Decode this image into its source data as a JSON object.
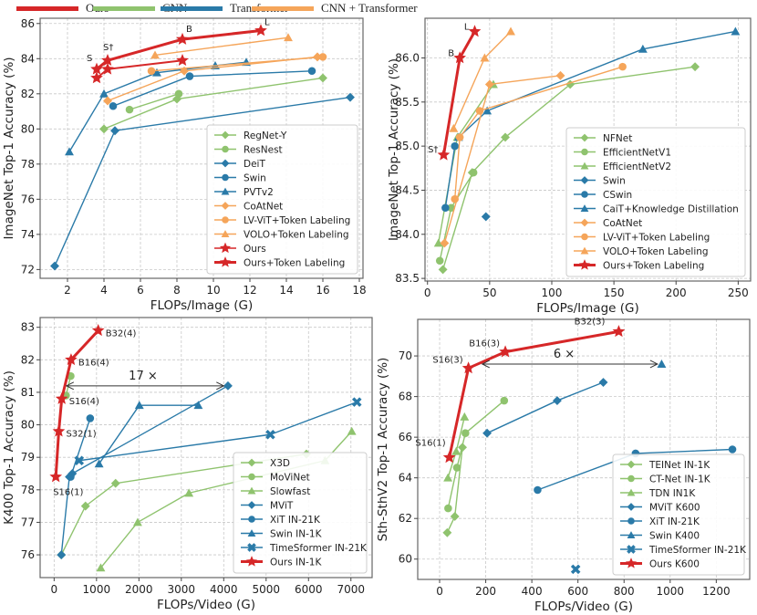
{
  "top_legend": {
    "items": [
      {
        "label": "Ours",
        "color": "#d62728"
      },
      {
        "label": "CNN",
        "color": "#8fc36e"
      },
      {
        "label": "Transformer",
        "color": "#2a7aa8"
      },
      {
        "label": "CNN + Transformer",
        "color": "#f5a55a"
      }
    ]
  },
  "colors": {
    "ours": "#d62728",
    "cnn": "#8fc36e",
    "transformer": "#2a7aa8",
    "hybrid": "#f5a55a"
  },
  "chart_data": [
    {
      "id": "imagenet-small",
      "type": "line",
      "xlabel": "FLOPs/Image (G)",
      "ylabel": "ImageNet Top-1 Accuracy (%)",
      "xlim": [
        0.5,
        18.2
      ],
      "ylim": [
        71.5,
        86.3
      ],
      "xticks": [
        2,
        4,
        6,
        8,
        10,
        12,
        14,
        16,
        18
      ],
      "yticks": [
        72,
        74,
        76,
        78,
        80,
        82,
        84,
        86
      ],
      "grid": true,
      "legend_position": "lower-right",
      "series": [
        {
          "name": "RegNet-Y",
          "group": "cnn",
          "marker": "diamond",
          "points": [
            [
              4.0,
              80.0
            ],
            [
              8.0,
              81.7
            ],
            [
              16.0,
              82.9
            ]
          ]
        },
        {
          "name": "ResNest",
          "group": "cnn",
          "marker": "circle",
          "points": [
            [
              5.4,
              81.1
            ],
            [
              8.1,
              82.0
            ]
          ]
        },
        {
          "name": "DeiT",
          "group": "transformer",
          "marker": "diamond",
          "points": [
            [
              1.3,
              72.2
            ],
            [
              4.6,
              79.9
            ],
            [
              17.5,
              81.8
            ]
          ]
        },
        {
          "name": "Swin",
          "group": "transformer",
          "marker": "circle",
          "points": [
            [
              4.5,
              81.3
            ],
            [
              8.7,
              83.0
            ],
            [
              15.4,
              83.3
            ]
          ]
        },
        {
          "name": "PVTv2",
          "group": "transformer",
          "marker": "triangle",
          "points": [
            [
              2.1,
              78.7
            ],
            [
              4.0,
              82.0
            ],
            [
              6.9,
              83.2
            ],
            [
              10.1,
              83.6
            ],
            [
              11.8,
              83.8
            ]
          ]
        },
        {
          "name": "CoAtNet",
          "group": "hybrid",
          "marker": "diamond",
          "points": [
            [
              4.2,
              81.6
            ],
            [
              8.4,
              83.3
            ],
            [
              15.7,
              84.1
            ]
          ]
        },
        {
          "name": "LV-ViT+Token Labeling",
          "group": "hybrid",
          "marker": "circle",
          "points": [
            [
              6.6,
              83.3
            ],
            [
              16.0,
              84.1
            ]
          ]
        },
        {
          "name": "VOLO+Token Labeling",
          "group": "hybrid",
          "marker": "triangle",
          "points": [
            [
              6.8,
              84.2
            ],
            [
              14.1,
              85.2
            ]
          ]
        },
        {
          "name": "Ours",
          "group": "ours",
          "marker": "star",
          "bold": false,
          "points": [
            [
              3.6,
              82.9
            ],
            [
              4.2,
              83.4
            ],
            [
              8.3,
              83.9
            ]
          ]
        },
        {
          "name": "Ours+Token Labeling",
          "group": "ours",
          "marker": "star",
          "bold": true,
          "points": [
            [
              3.6,
              83.4
            ],
            [
              4.2,
              83.9
            ],
            [
              8.3,
              85.1
            ],
            [
              12.6,
              85.6
            ]
          ]
        }
      ],
      "annotations": [
        {
          "text": "S",
          "x": 3.6,
          "y": 83.4
        },
        {
          "text": "S†",
          "x": 4.2,
          "y": 83.9
        },
        {
          "text": "B",
          "x": 8.3,
          "y": 85.1
        },
        {
          "text": "L",
          "x": 12.6,
          "y": 85.6
        }
      ]
    },
    {
      "id": "imagenet-large",
      "type": "line",
      "xlabel": "FLOPs/Image (G)",
      "ylabel": "ImageNet Top-1 Accuracy (%)",
      "xlim": [
        -2,
        260
      ],
      "ylim": [
        83.47,
        86.45
      ],
      "xticks": [
        0,
        50,
        100,
        150,
        200,
        250
      ],
      "yticks": [
        83.5,
        84.0,
        84.5,
        85.0,
        85.5,
        86.0
      ],
      "grid": true,
      "legend_position": "lower-right",
      "series": [
        {
          "name": "NFNet",
          "group": "cnn",
          "marker": "diamond",
          "points": [
            [
              12.4,
              83.6
            ],
            [
              36,
              84.7
            ],
            [
              62.6,
              85.1
            ],
            [
              114.8,
              85.7
            ],
            [
              215.3,
              85.9
            ]
          ]
        },
        {
          "name": "EfficientNetV1",
          "group": "cnn",
          "marker": "circle",
          "points": [
            [
              9.9,
              83.7
            ],
            [
              19,
              84.3
            ],
            [
              37,
              84.7
            ]
          ]
        },
        {
          "name": "EfficientNetV2",
          "group": "cnn",
          "marker": "triangle",
          "points": [
            [
              8.8,
              83.9
            ],
            [
              24,
              85.1
            ],
            [
              53,
              85.7
            ]
          ]
        },
        {
          "name": "Swin",
          "group": "transformer",
          "marker": "diamond",
          "points": [
            [
              47,
              84.2
            ]
          ]
        },
        {
          "name": "CSwin",
          "group": "transformer",
          "marker": "circle",
          "points": [
            [
              14.4,
              84.3
            ],
            [
              22,
              85.0
            ]
          ]
        },
        {
          "name": "CaiT+Knowledge Distillation",
          "group": "transformer",
          "marker": "triangle",
          "points": [
            [
              25,
              85.1
            ],
            [
              48,
              85.4
            ],
            [
              173.3,
              86.1
            ],
            [
              247.8,
              86.3
            ]
          ]
        },
        {
          "name": "CoAtNet",
          "group": "hybrid",
          "marker": "diamond",
          "points": [
            [
              13.7,
              83.9
            ],
            [
              50,
              85.7
            ],
            [
              107,
              85.8
            ]
          ]
        },
        {
          "name": "LV-ViT+Token Labeling",
          "group": "hybrid",
          "marker": "circle",
          "points": [
            [
              22,
              84.4
            ],
            [
              26,
              85.1
            ],
            [
              42,
              85.4
            ],
            [
              157,
              85.9
            ]
          ]
        },
        {
          "name": "VOLO+Token Labeling",
          "group": "hybrid",
          "marker": "triangle",
          "points": [
            [
              21,
              85.2
            ],
            [
              46,
              86.0
            ],
            [
              67,
              86.3
            ]
          ]
        },
        {
          "name": "Ours+Token Labeling",
          "group": "ours",
          "marker": "star",
          "bold": true,
          "points": [
            [
              13,
              84.9
            ],
            [
              26,
              86.0
            ],
            [
              38,
              86.3
            ]
          ]
        }
      ],
      "annotations": [
        {
          "text": "S†",
          "x": 13,
          "y": 84.9
        },
        {
          "text": "B",
          "x": 26,
          "y": 86.0
        },
        {
          "text": "L",
          "x": 38,
          "y": 86.3
        }
      ]
    },
    {
      "id": "k400",
      "type": "line",
      "xlabel": "FLOPs/Video (G)",
      "ylabel": "K400 Top-1 Accuracy (%)",
      "xlim": [
        -330,
        7500
      ],
      "ylim": [
        75.3,
        83.3
      ],
      "xticks": [
        0,
        1000,
        2000,
        3000,
        4000,
        5000,
        6000,
        7000
      ],
      "yticks": [
        76,
        77,
        78,
        79,
        80,
        81,
        82,
        83
      ],
      "grid": true,
      "legend_position": "lower-right",
      "series": [
        {
          "name": "X3D",
          "group": "cnn",
          "marker": "diamond",
          "points": [
            [
              170,
              76.0
            ],
            [
              740,
              77.5
            ],
            [
              1450,
              78.2
            ],
            [
              5950,
              79.1
            ]
          ]
        },
        {
          "name": "MoViNet",
          "group": "cnn",
          "marker": "circle",
          "points": [
            [
              280,
              80.9
            ],
            [
              390,
              81.5
            ]
          ]
        },
        {
          "name": "Slowfast",
          "group": "cnn",
          "marker": "triangle",
          "points": [
            [
              1100,
              75.6
            ],
            [
              1970,
              77.0
            ],
            [
              3180,
              77.9
            ],
            [
              6390,
              78.9
            ],
            [
              7020,
              79.8
            ]
          ]
        },
        {
          "name": "MViT",
          "group": "transformer",
          "marker": "diamond",
          "points": [
            [
              170,
              76.0
            ],
            [
              360,
              78.4
            ],
            [
              430,
              78.5
            ],
            [
              4100,
              81.2
            ]
          ]
        },
        {
          "name": "XiT IN-21K",
          "group": "transformer",
          "marker": "circle",
          "points": [
            [
              390,
              78.4
            ],
            [
              850,
              80.2
            ]
          ]
        },
        {
          "name": "Swin IN-1K",
          "group": "transformer",
          "marker": "triangle",
          "points": [
            [
              1060,
              78.8
            ],
            [
              2010,
              80.6
            ],
            [
              3400,
              80.6
            ]
          ]
        },
        {
          "name": "TimeSformer IN-21K",
          "group": "transformer",
          "marker": "cross",
          "points": [
            [
              590,
              78.9
            ],
            [
              5100,
              79.7
            ],
            [
              7140,
              80.7
            ]
          ]
        },
        {
          "name": "Ours IN-1K",
          "group": "ours",
          "marker": "star",
          "bold": true,
          "points": [
            [
              40,
              78.4
            ],
            [
              110,
              79.8
            ],
            [
              180,
              80.8
            ],
            [
              400,
              82.0
            ],
            [
              1040,
              82.9
            ]
          ]
        }
      ],
      "annotations": [
        {
          "text": "S16(1)",
          "x": 40,
          "y": 78.4
        },
        {
          "text": "S32(1)",
          "x": 110,
          "y": 79.8
        },
        {
          "text": "S16(4)",
          "x": 180,
          "y": 80.8
        },
        {
          "text": "B16(4)",
          "x": 400,
          "y": 82.0
        },
        {
          "text": "B32(4)",
          "x": 1040,
          "y": 82.9
        },
        {
          "text": "17 ×",
          "x": 2100,
          "y": 81.2,
          "arrow_from": [
            290,
            81.2
          ],
          "arrow_to": [
            4000,
            81.2
          ]
        }
      ]
    },
    {
      "id": "sthv2",
      "type": "line",
      "xlabel": "FLOPs/Video (G)",
      "ylabel": "Sth-SthV2 Top-1 Accuracy (%)",
      "xlim": [
        -95,
        1345
      ],
      "ylim": [
        59.0,
        71.8
      ],
      "xticks": [
        0,
        200,
        400,
        600,
        800,
        1000,
        1200
      ],
      "yticks": [
        60,
        62,
        64,
        66,
        68,
        70
      ],
      "grid": true,
      "legend_position": "lower-right",
      "series": [
        {
          "name": "TEINet IN-1K",
          "group": "cnn",
          "marker": "diamond",
          "points": [
            [
              33,
              61.3
            ],
            [
              66,
              62.1
            ],
            [
              99,
              65.5
            ]
          ]
        },
        {
          "name": "CT-Net IN-1K",
          "group": "cnn",
          "marker": "circle",
          "points": [
            [
              37,
              62.5
            ],
            [
              75,
              64.5
            ],
            [
              112,
              66.2
            ],
            [
              280,
              67.8
            ]
          ]
        },
        {
          "name": "TDN IN1K",
          "group": "cnn",
          "marker": "triangle",
          "points": [
            [
              36,
              64.0
            ],
            [
              72,
              65.3
            ],
            [
              108,
              67.0
            ]
          ]
        },
        {
          "name": "MViT K600",
          "group": "transformer",
          "marker": "diamond",
          "points": [
            [
              206,
              66.2
            ],
            [
              510,
              67.8
            ],
            [
              710,
              68.7
            ]
          ]
        },
        {
          "name": "XiT IN-21K",
          "group": "transformer",
          "marker": "circle",
          "points": [
            [
              425,
              63.4
            ],
            [
              850,
              65.2
            ],
            [
              1270,
              65.4
            ]
          ]
        },
        {
          "name": "Swin K400",
          "group": "transformer",
          "marker": "triangle",
          "points": [
            [
              963,
              69.6
            ]
          ]
        },
        {
          "name": "TimeSformer IN-21K",
          "group": "transformer",
          "marker": "cross",
          "points": [
            [
              590,
              59.5
            ]
          ]
        },
        {
          "name": "Ours K600",
          "group": "ours",
          "marker": "star",
          "bold": true,
          "points": [
            [
              42,
              65.0
            ],
            [
              125,
              69.4
            ],
            [
              285,
              70.2
            ],
            [
              777,
              71.2
            ]
          ]
        }
      ],
      "annotations": [
        {
          "text": "S16(1)",
          "x": 42,
          "y": 65.0
        },
        {
          "text": "S16(3)",
          "x": 125,
          "y": 69.4
        },
        {
          "text": "B16(3)",
          "x": 285,
          "y": 70.2
        },
        {
          "text": "B32(3)",
          "x": 777,
          "y": 71.2
        },
        {
          "text": "6 ×",
          "x": 540,
          "y": 69.6,
          "arrow_from": [
            185,
            69.6
          ],
          "arrow_to": [
            945,
            69.6
          ]
        }
      ]
    }
  ]
}
